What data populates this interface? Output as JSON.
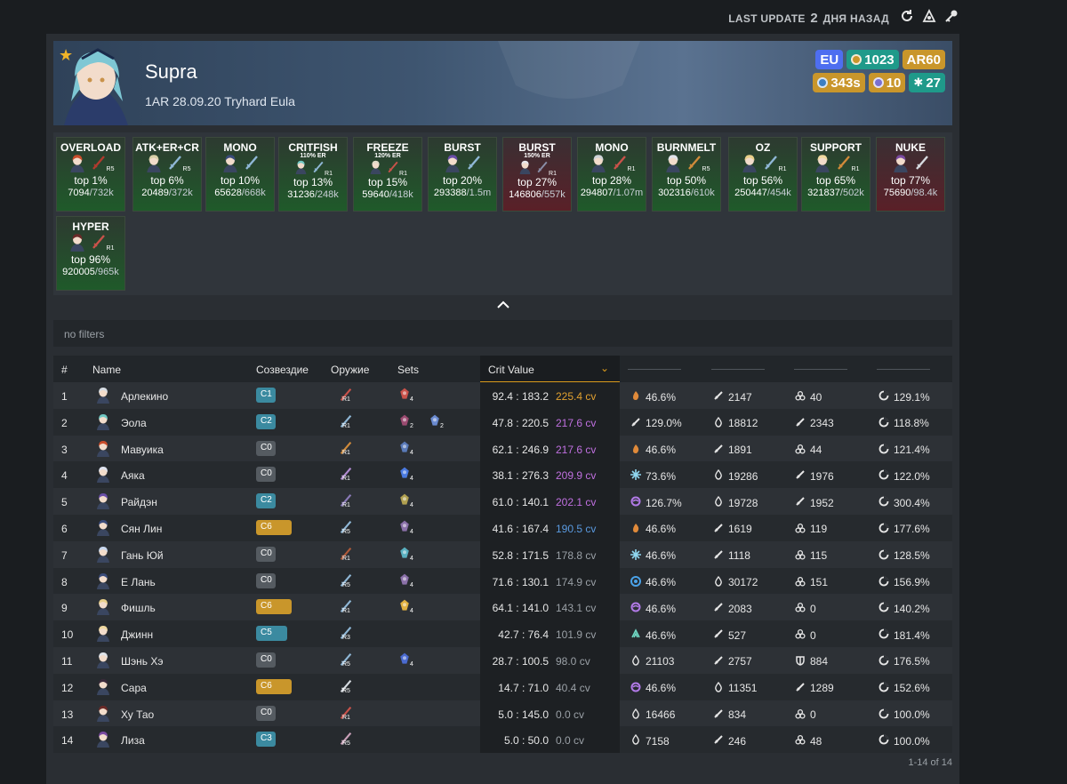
{
  "topbar": {
    "last_update_label": "LAST UPDATE",
    "last_update_num": "2",
    "last_update_unit": "ДНЯ НАЗАД"
  },
  "profile": {
    "name": "Supra",
    "signature": "1AR 28.09.20 Tryhard Eula",
    "region": "EU",
    "achievements": "1023",
    "ar": "AR60",
    "abyss": "343s",
    "friendship": "10",
    "wl": "27"
  },
  "ranks": [
    {
      "title": "OVERLOAD",
      "sub": "",
      "refine": "R5",
      "top": "top 1%",
      "score": "7094",
      "total": "/732k",
      "color": "green",
      "a": "#c94d2b",
      "w": "#b13a2e"
    },
    {
      "title": "ATK+ER+CR",
      "sub": "",
      "refine": "R5",
      "top": "top 6%",
      "score": "20489",
      "total": "/372k",
      "color": "green",
      "a": "#d7cfa8",
      "w": "#8fb7d6"
    },
    {
      "title": "MONO",
      "sub": "",
      "refine": "",
      "top": "top 10%",
      "score": "65628",
      "total": "/668k",
      "color": "green",
      "a": "#3a4b7a",
      "w": "#8fb7d6"
    },
    {
      "title": "CRITFISH",
      "sub": "110% ER",
      "refine": "R1",
      "top": "top 13%",
      "score": "31236",
      "total": "/248k",
      "color": "green",
      "a": "#6fc7c2",
      "w": "#8fb7d6"
    },
    {
      "title": "FREEZE",
      "sub": "120% ER",
      "refine": "R1",
      "top": "top 15%",
      "score": "59640",
      "total": "/418k",
      "color": "green",
      "a": "#e0dbc8",
      "w": "#c9524a"
    },
    {
      "title": "BURST",
      "sub": "",
      "refine": "",
      "top": "top 20%",
      "score": "293388",
      "total": "/1.5m",
      "color": "green",
      "a": "#6a4ea8",
      "w": "#8fb7d6"
    },
    {
      "title": "BURST",
      "sub": "150% ER",
      "refine": "R1",
      "top": "top 27%",
      "score": "146806",
      "total": "/557k",
      "color": "red",
      "a": "#e8e8ec",
      "w": "#8a8fa8"
    },
    {
      "title": "MONO",
      "sub": "",
      "refine": "R1",
      "top": "top 28%",
      "score": "294807",
      "total": "/1.07m",
      "color": "green",
      "a": "#cfd3d8",
      "w": "#c9524a"
    },
    {
      "title": "BURNMELT",
      "sub": "",
      "refine": "R5",
      "top": "top 50%",
      "score": "302316",
      "total": "/610k",
      "color": "green",
      "a": "#e0e4ea",
      "w": "#d08a3a"
    },
    {
      "title": "OZ",
      "sub": "",
      "refine": "R1",
      "top": "top 56%",
      "score": "250447",
      "total": "/454k",
      "color": "green",
      "a": "#e8cf8a",
      "w": "#8fb7d6"
    },
    {
      "title": "SUPPORT",
      "sub": "",
      "refine": "R1",
      "top": "top 65%",
      "score": "321837",
      "total": "/502k",
      "color": "green",
      "a": "#f0d9a0",
      "w": "#d08a3a"
    },
    {
      "title": "NUKE",
      "sub": "",
      "refine": "",
      "top": "top 77%",
      "score": "75690",
      "total": "/98.4k",
      "color": "red",
      "a": "#7a4aa0",
      "w": "#d6dbe0"
    },
    {
      "title": "HYPER",
      "sub": "",
      "refine": "R1",
      "top": "top 96%",
      "score": "920005",
      "total": "/965k",
      "color": "green",
      "a": "#6a2a28",
      "w": "#c9524a"
    }
  ],
  "filter": {
    "text": "no filters"
  },
  "table": {
    "headers": {
      "num": "#",
      "name": "Name",
      "cons": "Созвездие",
      "weapon": "Оружие",
      "sets": "Sets",
      "crit": "Crit Value"
    },
    "rows": [
      {
        "n": "1",
        "name": "Арлекино",
        "cons": "C1",
        "cc": "c1",
        "ref": "R1",
        "wcol": "#c9524a",
        "set": [
          {
            "c": "#c9524a",
            "n": "4"
          }
        ],
        "ratio": "92.4 : 183.2",
        "cv": "225.4 cv",
        "cvc": "#e0a030",
        "s1i": "pyro",
        "s1": "46.6%",
        "s2i": "sword",
        "s2": "2147",
        "s3i": "atk",
        "s3": "40",
        "s4i": "er",
        "s4": "129.1%",
        "av": "#d8dde3"
      },
      {
        "n": "2",
        "name": "Эола",
        "cons": "C2",
        "cc": "c2",
        "ref": "R1",
        "wcol": "#8fb7d6",
        "set": [
          {
            "c": "#9a4a70",
            "n": "2"
          },
          {
            "c": "#6a8ad0",
            "n": "2"
          }
        ],
        "ratio": "47.8 : 220.5",
        "cv": "217.6 cv",
        "cvc": "#c070e0",
        "s1i": "sword",
        "s1": "129.0%",
        "s2i": "def",
        "s2": "18812",
        "s3i": "sword",
        "s3": "2343",
        "s4i": "er",
        "s4": "118.8%",
        "av": "#6fc7c2"
      },
      {
        "n": "3",
        "name": "Мавуика",
        "cons": "C0",
        "cc": "c0",
        "ref": "R1",
        "wcol": "#d08a3a",
        "set": [
          {
            "c": "#5a7ab8",
            "n": "4"
          }
        ],
        "ratio": "62.1 : 246.9",
        "cv": "217.6 cv",
        "cvc": "#c070e0",
        "s1i": "pyro",
        "s1": "46.6%",
        "s2i": "sword",
        "s2": "1891",
        "s3i": "atk",
        "s3": "44",
        "s4i": "er",
        "s4": "121.4%",
        "av": "#c94d2b"
      },
      {
        "n": "4",
        "name": "Аяка",
        "cons": "C0",
        "cc": "c0",
        "ref": "R1",
        "wcol": "#b08ad0",
        "set": [
          {
            "c": "#4a7ae0",
            "n": "4"
          }
        ],
        "ratio": "38.1 : 276.3",
        "cv": "209.9 cv",
        "cvc": "#c070e0",
        "s1i": "cryo",
        "s1": "73.6%",
        "s2i": "def",
        "s2": "19286",
        "s3i": "sword",
        "s3": "1976",
        "s4i": "er",
        "s4": "122.0%",
        "av": "#dfe3ef"
      },
      {
        "n": "5",
        "name": "Райдэн",
        "cons": "C2",
        "cc": "c2",
        "ref": "R1",
        "wcol": "#8a7ab8",
        "set": [
          {
            "c": "#b0a050",
            "n": "4"
          }
        ],
        "ratio": "61.0 : 140.1",
        "cv": "202.1 cv",
        "cvc": "#c070e0",
        "s1i": "electro",
        "s1": "126.7%",
        "s2i": "def",
        "s2": "19728",
        "s3i": "sword",
        "s3": "1952",
        "s4i": "er",
        "s4": "300.4%",
        "av": "#6a4ea8"
      },
      {
        "n": "6",
        "name": "Сян Лин",
        "cons": "C6",
        "cc": "c6",
        "ref": "R5",
        "wcol": "#8fb7d6",
        "set": [
          {
            "c": "#8a70a8",
            "n": "4"
          }
        ],
        "ratio": "41.6 : 167.4",
        "cv": "190.5 cv",
        "cvc": "#5a9ae0",
        "s1i": "pyro",
        "s1": "46.6%",
        "s2i": "sword",
        "s2": "1619",
        "s3i": "atk",
        "s3": "119",
        "s4i": "er",
        "s4": "177.6%",
        "av": "#3a4b7a"
      },
      {
        "n": "7",
        "name": "Гань Юй",
        "cons": "C0",
        "cc": "c0",
        "ref": "R1",
        "wcol": "#b05a3a",
        "set": [
          {
            "c": "#5ab0c0",
            "n": "4"
          }
        ],
        "ratio": "52.8 : 171.5",
        "cv": "178.8 cv",
        "cvc": "#9aa0a6",
        "s1i": "cryo",
        "s1": "46.6%",
        "s2i": "sword",
        "s2": "1118",
        "s3i": "atk",
        "s3": "115",
        "s4i": "er",
        "s4": "128.5%",
        "av": "#c9d8ef"
      },
      {
        "n": "8",
        "name": "Е Лань",
        "cons": "C0",
        "cc": "c0",
        "ref": "R5",
        "wcol": "#8fb7d6",
        "set": [
          {
            "c": "#8a70a8",
            "n": "4"
          }
        ],
        "ratio": "71.6 : 130.1",
        "cv": "174.9 cv",
        "cvc": "#9aa0a6",
        "s1i": "hydro",
        "s1": "46.6%",
        "s2i": "def",
        "s2": "30172",
        "s3i": "atk",
        "s3": "151",
        "s4i": "er",
        "s4": "156.9%",
        "av": "#3a4b7a"
      },
      {
        "n": "9",
        "name": "Фишль",
        "cons": "C6",
        "cc": "c6",
        "ref": "R1",
        "wcol": "#8fb7d6",
        "set": [
          {
            "c": "#e0b040",
            "n": "4"
          }
        ],
        "ratio": "64.1 : 141.0",
        "cv": "143.1 cv",
        "cvc": "#9aa0a6",
        "s1i": "electro",
        "s1": "46.6%",
        "s2i": "sword",
        "s2": "2083",
        "s3i": "atk",
        "s3": "0",
        "s4i": "er",
        "s4": "140.2%",
        "av": "#e8cf8a"
      },
      {
        "n": "10",
        "name": "Джинн",
        "cons": "C5",
        "cc": "c5",
        "ref": "R3",
        "wcol": "#8fb7d6",
        "set": [],
        "ratio": "42.7 : 76.4",
        "cv": "101.9 cv",
        "cvc": "#9aa0a6",
        "s1i": "anemo",
        "s1": "46.6%",
        "s2i": "sword",
        "s2": "527",
        "s3i": "atk",
        "s3": "0",
        "s4i": "er",
        "s4": "181.4%",
        "av": "#f0d9a0"
      },
      {
        "n": "11",
        "name": "Шэнь Хэ",
        "cons": "C0",
        "cc": "c0",
        "ref": "R5",
        "wcol": "#8fb7d6",
        "set": [
          {
            "c": "#4a6ad0",
            "n": "4"
          }
        ],
        "ratio": "28.7 : 100.5",
        "cv": "98.0 cv",
        "cvc": "#9aa0a6",
        "s1i": "def",
        "s1": "21103",
        "s2i": "sword",
        "s2": "2757",
        "s3i": "shield",
        "s3": "884",
        "s4i": "er",
        "s4": "176.5%",
        "av": "#e0e4ea"
      },
      {
        "n": "12",
        "name": "Сара",
        "cons": "C6",
        "cc": "c6",
        "ref": "R5",
        "wcol": "#d6dbe0",
        "set": [],
        "ratio": "14.7 : 71.0",
        "cv": "40.4 cv",
        "cvc": "#9aa0a6",
        "s1i": "electro",
        "s1": "46.6%",
        "s2i": "def",
        "s2": "11351",
        "s3i": "sword",
        "s3": "1289",
        "s4i": "er",
        "s4": "152.6%",
        "av": "#3a2a3a"
      },
      {
        "n": "13",
        "name": "Ху Тао",
        "cons": "C0",
        "cc": "c0",
        "ref": "R1",
        "wcol": "#c9524a",
        "set": [],
        "ratio": "5.0 : 145.0",
        "cv": "0.0 cv",
        "cvc": "#9aa0a6",
        "s1i": "def",
        "s1": "16466",
        "s2i": "sword",
        "s2": "834",
        "s3i": "atk",
        "s3": "0",
        "s4i": "er",
        "s4": "100.0%",
        "av": "#6a2a28"
      },
      {
        "n": "14",
        "name": "Лиза",
        "cons": "C3",
        "cc": "c3",
        "ref": "R5",
        "wcol": "#c9a0b8",
        "set": [],
        "ratio": "5.0 : 50.0",
        "cv": "0.0 cv",
        "cvc": "#9aa0a6",
        "s1i": "def",
        "s1": "7158",
        "s2i": "sword",
        "s2": "246",
        "s3i": "atk",
        "s3": "48",
        "s4i": "er",
        "s4": "100.0%",
        "av": "#7a4aa0"
      }
    ],
    "pager": "1-14 of 14"
  }
}
